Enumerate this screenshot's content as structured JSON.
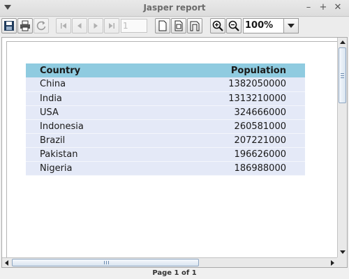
{
  "window": {
    "title": "Jasper report",
    "controls": {
      "minimize": "–",
      "maximize": "+",
      "close": "✕"
    }
  },
  "toolbar": {
    "buttons": [
      {
        "name": "save-icon",
        "enabled": true
      },
      {
        "name": "print-icon",
        "enabled": true
      },
      {
        "name": "reload-icon",
        "enabled": false
      },
      {
        "name": "first-page-icon",
        "enabled": false
      },
      {
        "name": "previous-page-icon",
        "enabled": false
      },
      {
        "name": "next-page-icon",
        "enabled": false
      },
      {
        "name": "last-page-icon",
        "enabled": false
      },
      {
        "name": "actual-size-icon",
        "enabled": true
      },
      {
        "name": "fit-page-icon",
        "enabled": true
      },
      {
        "name": "fit-width-icon",
        "enabled": true
      },
      {
        "name": "zoom-in-icon",
        "enabled": true
      },
      {
        "name": "zoom-out-icon",
        "enabled": true
      }
    ],
    "page_number": "1",
    "zoom_value": "100%"
  },
  "report": {
    "columns": [
      "Country",
      "Population"
    ],
    "rows": [
      [
        "China",
        "1382050000"
      ],
      [
        "India",
        "1313210000"
      ],
      [
        "USA",
        "324666000"
      ],
      [
        "Indonesia",
        "260581000"
      ],
      [
        "Brazil",
        "207221000"
      ],
      [
        "Pakistan",
        "196626000"
      ],
      [
        "Nigeria",
        "186988000"
      ]
    ],
    "header_color": "#8fcbe0",
    "row_color": "#e4e9f7"
  },
  "status": {
    "page_text": "Page 1 of 1"
  }
}
